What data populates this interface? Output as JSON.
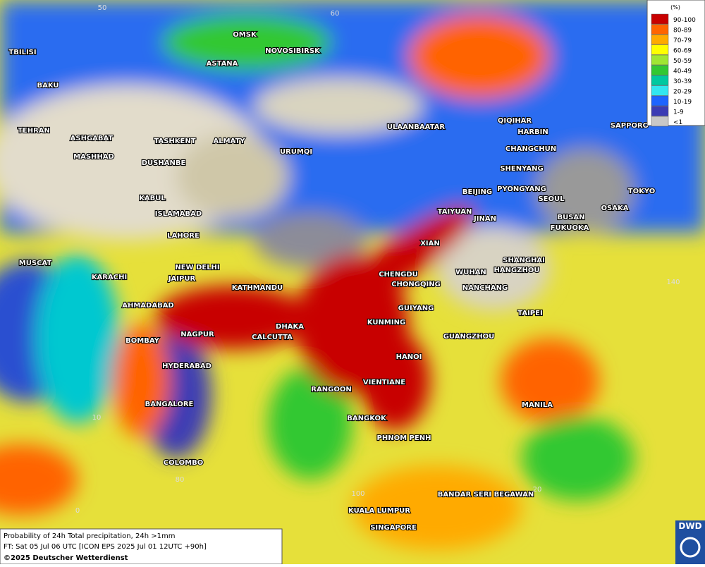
{
  "header": {
    "grid_labels": [
      "50",
      "60",
      "140",
      "10",
      "80",
      "0",
      "100",
      "20"
    ]
  },
  "cities": [
    "OMSK",
    "NOVOSIBIRSK",
    "ASTANA",
    "TBILISI",
    "BAKU",
    "TEHRAN",
    "ASHGABAT",
    "MASHHAD",
    "TASHKENT",
    "ALMATY",
    "DUSHANBE",
    "URUMQI",
    "ULAANBAATAR",
    "QIQIHAR",
    "HARBIN",
    "CHANGCHUN",
    "SHENYANG",
    "BEIJING",
    "PYONGYANG",
    "SEOUL",
    "SAPPORO",
    "TOKYO",
    "OSAKA",
    "BUSAN",
    "FUKUOKA",
    "KABUL",
    "ISLAMABAD",
    "LAHORE",
    "TAIYUAN",
    "JINAN",
    "XIAN",
    "SHANGHAI",
    "HANGZHOU",
    "WUHAN",
    "NANCHANG",
    "CHENGDU",
    "CHONGQING",
    "NEW DELHI",
    "MUSCAT",
    "KARACHI",
    "JAIPUR",
    "KATHMANDU",
    "AHMADABAD",
    "GUIYANG",
    "TAIPEI",
    "KUNMING",
    "DHAKA",
    "CALCUTTA",
    "NAGPUR",
    "BOMBAY",
    "GUANGZHOU",
    "HANOI",
    "HYDERABAD",
    "RANGOON",
    "VIENTIANE",
    "BANGALORE",
    "MANILA",
    "BANGKOK",
    "PHNOM PENH",
    "COLOMBO",
    "BANDAR SERI BEGAWAN",
    "KUALA LUMPUR",
    "SINGAPORE"
  ],
  "legend": {
    "title": "(%)",
    "items": [
      {
        "label": "90-100",
        "color": "#c80000"
      },
      {
        "label": "80-89",
        "color": "#ff6400"
      },
      {
        "label": "70-79",
        "color": "#ffaa00"
      },
      {
        "label": "60-69",
        "color": "#ffff00"
      },
      {
        "label": "50-59",
        "color": "#a0e632"
      },
      {
        "label": "40-49",
        "color": "#32c832"
      },
      {
        "label": "30-39",
        "color": "#00c8a0"
      },
      {
        "label": "20-29",
        "color": "#32e6f0"
      },
      {
        "label": "10-19",
        "color": "#1e64ff"
      },
      {
        "label": "1-9",
        "color": "#3c3cb4"
      },
      {
        "label": "<1",
        "color": "#c8c8c8"
      }
    ]
  },
  "footer": {
    "line1": "Probability of 24h Total precipitation, 24h >1mm",
    "line2": "FT: Sat 05 Jul 06 UTC [ICON EPS 2025 Jul 01 12UTC +90h]",
    "line3": "©2025 Deutscher Wetterdienst",
    "logo": "DWD"
  }
}
